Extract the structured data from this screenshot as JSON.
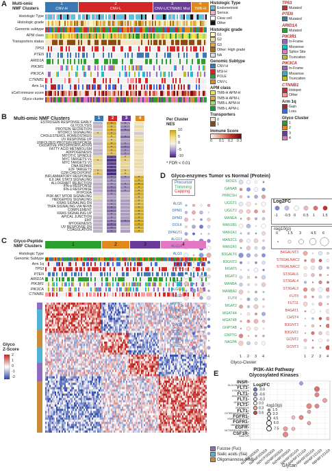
{
  "panels": {
    "A": "A",
    "B": "B",
    "C": "C",
    "D": "D",
    "E": "E"
  },
  "panelA": {
    "cluster_header": "Multi-omic\nNMF Clusters",
    "clusters": [
      {
        "num": "1",
        "name": "CNV-H",
        "color": "#3a78b5"
      },
      {
        "num": "2",
        "name": "CNV-L",
        "color": "#d62728"
      },
      {
        "num": "3",
        "name": "CNV-L/CTNNB1 Mut",
        "color": "#6a3d9a"
      },
      {
        "num": "4",
        "name": "TMB-H",
        "color": "#e08a1e"
      }
    ],
    "rows": [
      "Histologic Type",
      "Histologic grade",
      "Genomic subtype",
      "APM class",
      "Transporters status",
      "TP53",
      "PTEN",
      "ARID1A",
      "PIK3R1",
      "PIK3CA",
      "CTNNB1",
      "Arm 1q",
      "xCell immune score",
      "Glyco cluster"
    ],
    "italic_rows": [
      "TP53",
      "PTEN",
      "ARID1A",
      "PIK3R1",
      "PIK3CA",
      "CTNNB1"
    ]
  },
  "legendA": {
    "hist_type_title": "Histologic Type",
    "hist_type": [
      {
        "label": "Endometrioid",
        "color": "#5bc0de"
      },
      {
        "label": "Serous",
        "color": "#f3b3c9"
      },
      {
        "label": "Clear cell",
        "color": "#ffffff"
      },
      {
        "label": "Other",
        "color": "#111111"
      }
    ],
    "hist_grade_title": "Histologic grade",
    "hist_grade": [
      {
        "label": "G1",
        "color": "#fff5c2"
      },
      {
        "label": "G2",
        "color": "#f7d98a"
      },
      {
        "label": "G3",
        "color": "#e3a83a"
      },
      {
        "label": "Other: High grade",
        "color": "#a86d10"
      },
      {
        "label": "NA",
        "color": "#dddddd"
      }
    ],
    "genomic_title": "Genomic Subtype",
    "genomic": [
      {
        "label": "CNV-H",
        "color": "#3a78b5"
      },
      {
        "label": "MSI-H",
        "color": "#d62728"
      },
      {
        "label": "POLE",
        "color": "#2ca02c"
      },
      {
        "label": "CNV-L",
        "color": "#e08a1e"
      }
    ],
    "apm_title": "APM class",
    "apm": [
      {
        "label": "TMB-H APM-H",
        "color": "#f0e442"
      },
      {
        "label": "TMB-H APM-L",
        "color": "#e9a23b"
      },
      {
        "label": "TMB-L APM-H",
        "color": "#a6d96a"
      },
      {
        "label": "TMB-L APM-L",
        "color": "#1a9641"
      }
    ],
    "transporters_title": "Transporters",
    "transporters": [
      {
        "label": "0",
        "color": "#f5e6c8"
      },
      {
        "label": "1",
        "color": "#8c4a10"
      }
    ],
    "immune_title": "Immune Score",
    "immune_ticks": [
      "0",
      "0.1",
      "0.2",
      "0.3"
    ],
    "tp53_title": "TP53",
    "tp53": [
      {
        "label": "Mutated",
        "color": "#d62728"
      }
    ],
    "pten_title": "PTEN",
    "pten": [
      {
        "label": "Mutated",
        "color": "#3a78b5"
      }
    ],
    "arid1a_title": "ARID1A",
    "arid1a": [
      {
        "label": "Mutated",
        "color": "#2ca02c"
      }
    ],
    "pik3r1_title": "PIK3R1",
    "pik3r1": [
      {
        "label": "In-Frame",
        "color": "#9467bd"
      },
      {
        "label": "Missense",
        "color": "#17becf"
      },
      {
        "label": "Splice Site",
        "color": "#e377c2"
      },
      {
        "label": "Truncation",
        "color": "#bcbd22"
      }
    ],
    "pik3ca_title": "PIK3CA",
    "pik3ca": [
      {
        "label": "In-Frame",
        "color": "#9467bd"
      },
      {
        "label": "Missense",
        "color": "#17becf"
      },
      {
        "label": "Truncation",
        "color": "#bcbd22"
      }
    ],
    "ctnnb1_title": "CTNNB1",
    "ctnnb1": [
      {
        "label": "Hotspot",
        "color": "#d62728"
      },
      {
        "label": "Other",
        "color": "#ff9896"
      }
    ],
    "arm_title": "Arm 1q",
    "arm": [
      {
        "label": "Gain",
        "color": "#b22222"
      },
      {
        "label": "Loss",
        "color": "#4169e1"
      }
    ],
    "glyco_title": "Glyco Cluster",
    "glyco": [
      {
        "label": "1",
        "color": "#2ca02c"
      },
      {
        "label": "2",
        "color": "#e08a1e"
      },
      {
        "label": "3",
        "color": "#6a3d9a"
      },
      {
        "label": "4",
        "color": "#e377c2"
      }
    ]
  },
  "panelB": {
    "header": "Multi-omic NMF Clusters",
    "cols": [
      "1",
      "2",
      "3",
      "4"
    ],
    "col_colors": [
      "#3a78b5",
      "#d62728",
      "#6a3d9a",
      "#e08a1e"
    ],
    "pathways": [
      "ESTROGEN RESPONSE EARLY",
      "GLYCOLYSIS",
      "PROTEIN SECRETION",
      "MTORC1 SIGNALING",
      "CHOLESTEROL HOMEOSTASIS",
      "UV RESPONSE UP",
      "UNFOLDED PROTEIN RESPONSE",
      "OXIDATIVE PHOSPHORYLATION",
      "FATTY ACID METABOLISM",
      "ADIPOGENESIS",
      "MITOTIC SPINDLE",
      "MYC TARGETS V1",
      "MYC TARGETS V2",
      "DNA REPAIR",
      "E2F TARGETS",
      "G2M CHECKPOINT",
      "INFLAMMATORY RESPONSE",
      "IL6 JAK STAT3 SIGNALING",
      "ALLOGRAFT REJECTION",
      "IFN-g RESPONSE",
      "IFN-a RESPONSE",
      "HYPOXIA",
      "PI3K AKT MTOR SIGNALING",
      "HEDGEHOG SIGNALING",
      "KRAS SIGNALING DN",
      "TNFA SIGNALING VIA NFKB",
      "COMPLEMENT",
      "KRAS SIGNALING UP",
      "APICAL JUNCTION",
      "EMT",
      "MYOGENESIS",
      "UV RESPONSE DN",
      "COAGULATION"
    ],
    "legend_title": "Per Cluster\nNES",
    "legend_ticks": [
      "10",
      "5",
      "0",
      "-5",
      "-10"
    ],
    "fdr_note": "* FDR < 0.01"
  },
  "panelC": {
    "header": "Glyco-Peptide\nNMF Clusters",
    "clusters": [
      {
        "num": "1",
        "color": "#2ca02c"
      },
      {
        "num": "2",
        "color": "#e08a1e"
      },
      {
        "num": "3",
        "color": "#6a3d9a"
      },
      {
        "num": "4",
        "color": "#e377c2"
      }
    ],
    "rows": [
      "Histologic Type",
      "Genomic Subtype",
      "Arm 1q",
      "TP53",
      "PTEN",
      "ARID1A",
      "PIK3R1",
      "PIK3CA",
      "CTNNB1"
    ],
    "italic_rows": [
      "TP53",
      "PTEN",
      "ARID1A",
      "PIK3R1",
      "PIK3CA",
      "CTNNB1"
    ],
    "zscore_title": "Glyco\nZ-Score",
    "zscore_ticks": [
      "2",
      "1",
      "0",
      "-1",
      "-2"
    ],
    "glycan_legend": [
      {
        "label": "Fucose (Fuc)",
        "color": "#8e6cbf"
      },
      {
        "label": "Sialic acids (Sia)",
        "color": "#4fb3d9"
      },
      {
        "label": "Oligomannose (HM)",
        "color": "#c98a3a"
      }
    ]
  },
  "panelD": {
    "title": "Glyco-enzymes Tumor vs Normal (Protein)",
    "cat_legend": [
      {
        "label": "Precursor",
        "color": "#2f6aa3"
      },
      {
        "label": "Trimming",
        "color": "#2e9e4f"
      },
      {
        "label": "Capping",
        "color": "#cc3333"
      }
    ],
    "genes_col1": [
      "ALG5",
      "DPM1",
      "DPM3",
      "DOLK",
      "DPAGT1",
      "ALG13",
      "ALG14",
      "ALG1",
      "ALG11",
      "RFT1",
      "ALG8",
      "ALG6",
      "ALG12",
      "ALG2",
      "RPN1",
      "RPN2",
      "DDOST",
      "DAD1",
      "STT3A",
      "STT3B",
      "TUSC3"
    ],
    "genes_col2": [
      "MOGS",
      "GANAB",
      "PRKCSH",
      "UGGT1",
      "UGGT2",
      "MANEA",
      "MAN1B1",
      "MAN1A1",
      "MAN2C1",
      "MAN2A1",
      "B3GALT6",
      "B3GNT2",
      "MGAT5",
      "MGAT3",
      "MANBA",
      "MANBA2",
      "FUT8",
      "MGAT2",
      "MGAT4A",
      "MGAT4B",
      "GNPTAB",
      "GNPTG",
      "NAGPA"
    ],
    "genes_col3": [
      "B4GALNT3",
      "ST6GALNAC2",
      "ST6GALNAC2",
      "ST3GAL6",
      "ST3GAL4",
      "ST3GAL3",
      "FUT8",
      "FUT11",
      "B4GAT1",
      "CHST4",
      "B3GNT3",
      "B3GNT2",
      "GCNT2",
      "GCNT3"
    ],
    "xticks": [
      "1",
      "2",
      "3",
      "4"
    ],
    "xlabel": "Glyco-Cluster",
    "log2fc_title": "Log2FC",
    "log2fc_ticks": [
      "-1",
      "-0.5",
      "0",
      "0.5",
      "1",
      "1.5"
    ],
    "logp_title": "-log10(p)",
    "logp_ticks": [
      "0",
      "1.5",
      "3",
      "4.5",
      "6"
    ]
  },
  "panelE": {
    "title": "PI3K-Akt Pathway\nGlycosylated Kinases",
    "kinases": [
      {
        "name": "INSR-",
        "site": "ELGLYNLTNGTAQK"
      },
      {
        "name": "FLT1-",
        "site": "VTSPNITVTLKK"
      },
      {
        "name": "FLT1-",
        "site": "SVNTSVNVRSK"
      },
      {
        "name": "FLT1-",
        "site": "GHTLVNCTAR"
      },
      {
        "name": "FLT1-",
        "site": "GFIINNATYK"
      },
      {
        "name": "FLT1-",
        "site": "DVTEEDAGNYTILLSIK"
      },
      {
        "name": "FGFR1-",
        "site": "VSWNDSGNYTCGR"
      },
      {
        "name": "FGFR1-",
        "site": "NATSNGTAVPAR"
      },
      {
        "name": "EGFR-",
        "site": "NCTSISGDLHILPVAFR"
      },
      {
        "name": "CSF1R-",
        "site": "DAAITVR"
      }
    ],
    "glycans": [
      "N2H5F0S0G0",
      "N2H6F0S0G0",
      "N2H7F0S0G0",
      "N2H8F0S0G0",
      "N2H9F0S0G0",
      "N4H5F0S1G0",
      "N4H5F1S1G0",
      "N5H5F0S1G0",
      "N5H6F1S1G0",
      "N6H8F1S1G0"
    ],
    "xlabel": "Glycan",
    "log2fc_title": "Log2FC",
    "log2fc_ticks": [
      "-0.9",
      "-0.6",
      "-0.3",
      "0.0",
      "0.3",
      "0.6"
    ],
    "logp_title": "-log10(p)",
    "logp_ticks": [
      "1.5",
      "3.0",
      "4.5",
      "6.0",
      "7.5"
    ]
  }
}
